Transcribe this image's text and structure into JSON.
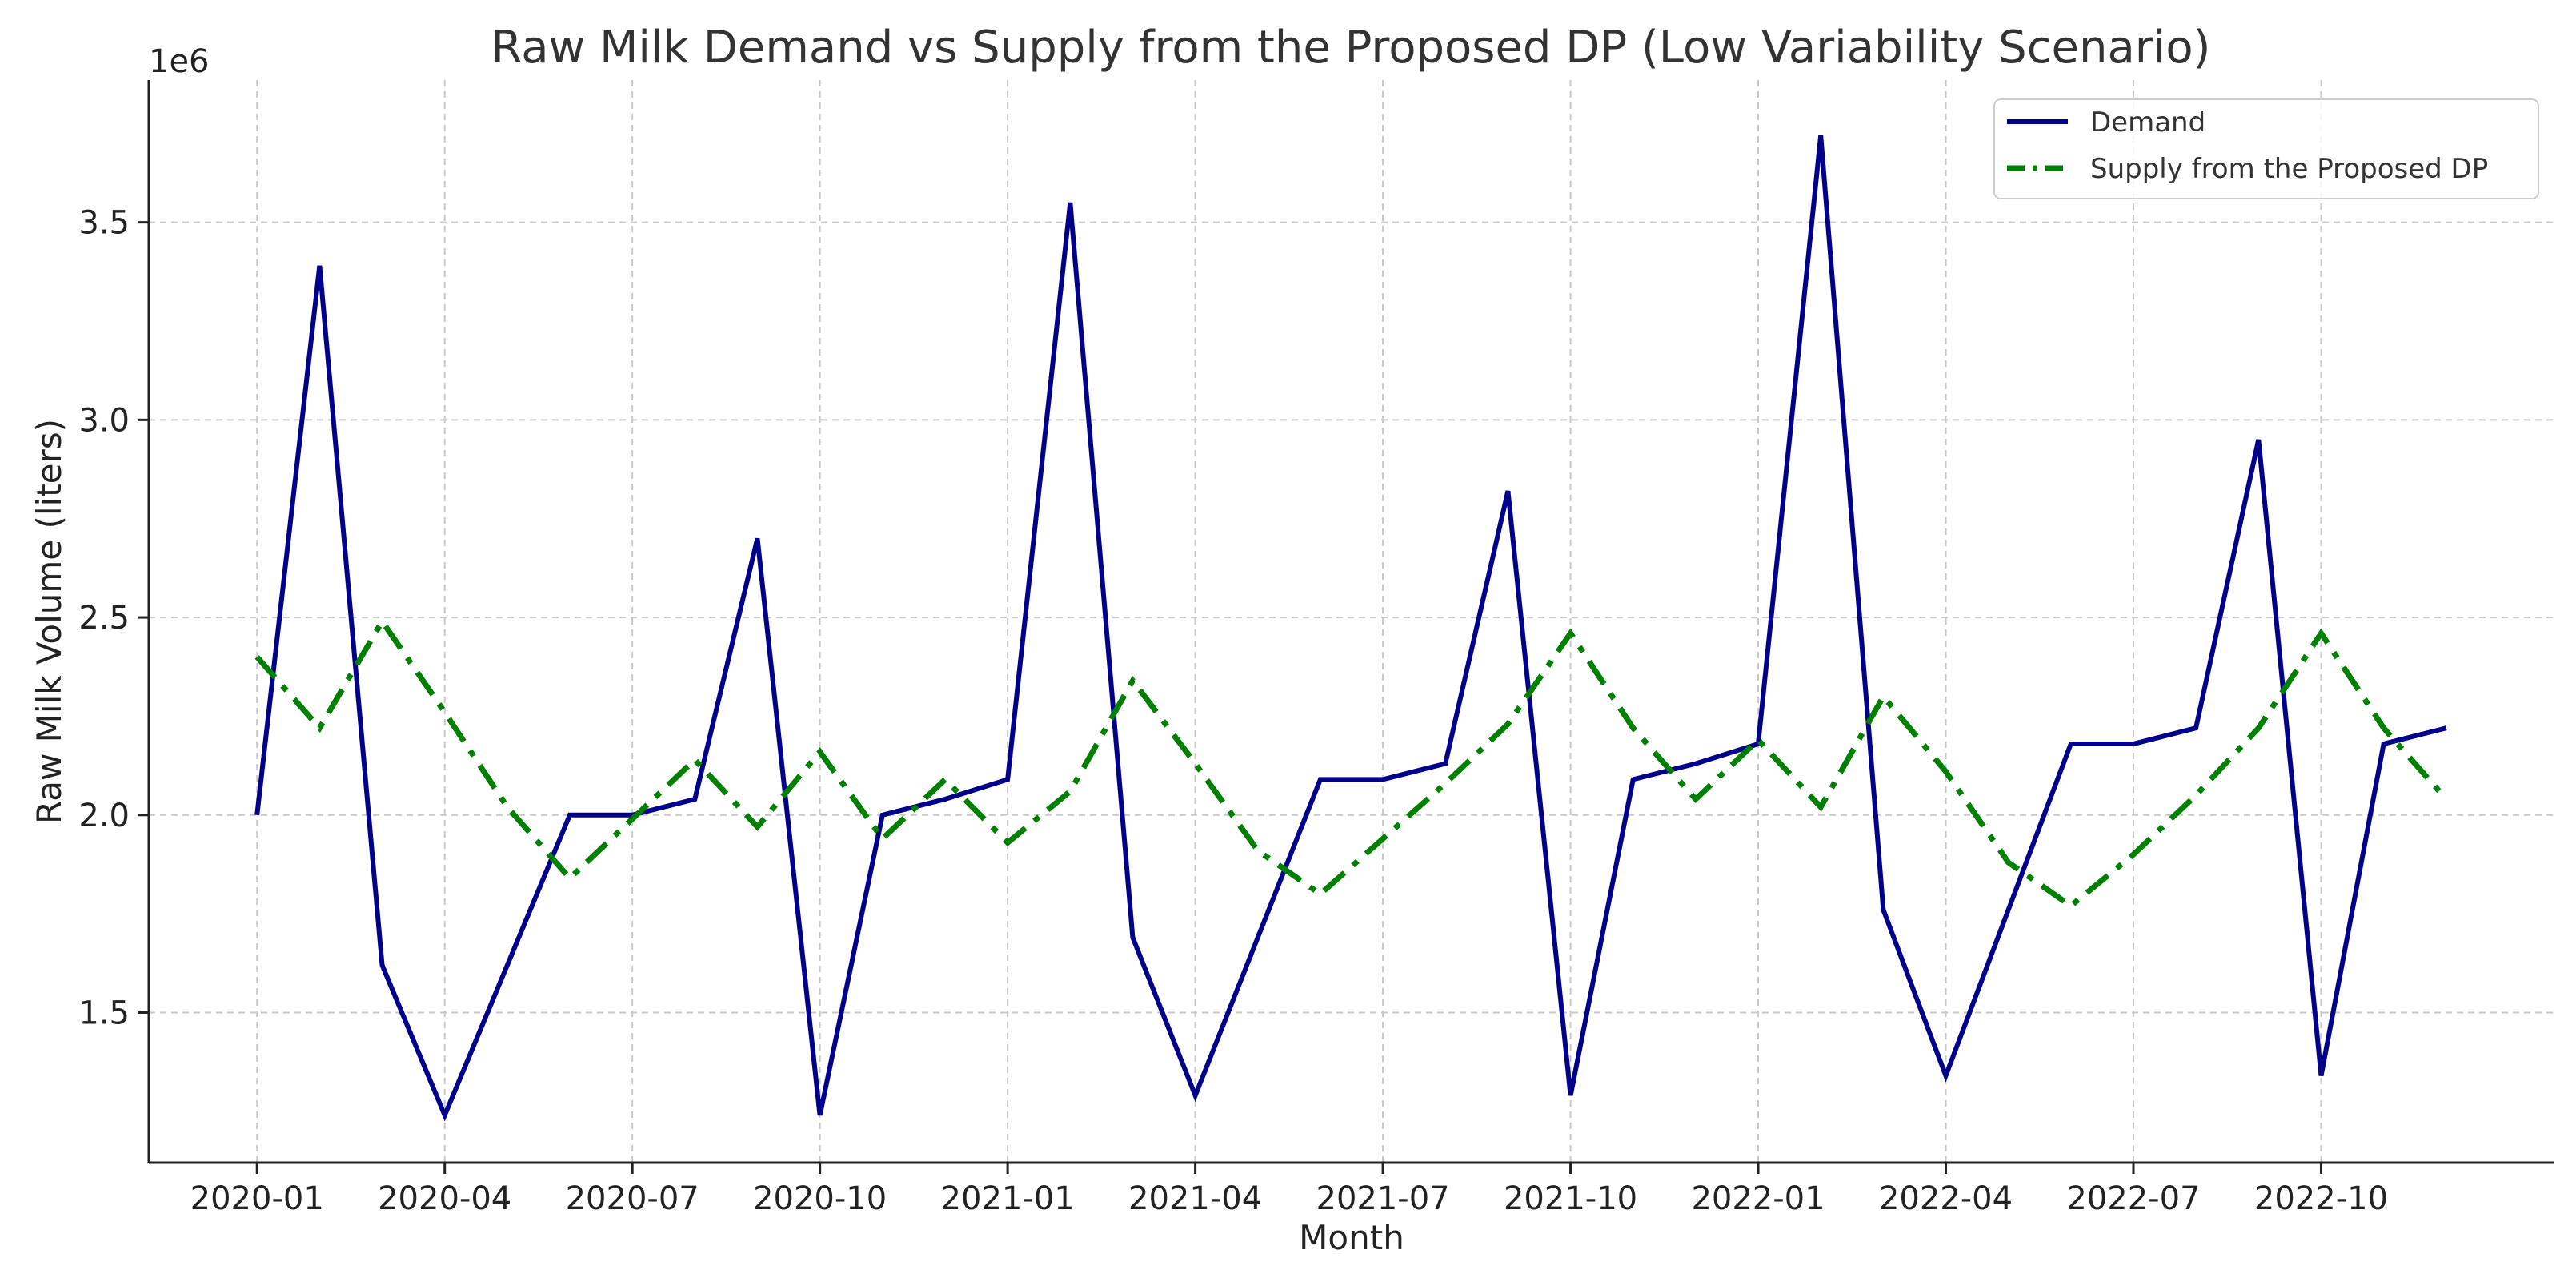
{
  "chart_data": {
    "type": "line",
    "title": "Raw Milk Demand vs Supply from the Proposed DP (Low Variability Scenario)",
    "xlabel": "Month",
    "ylabel": "Raw Milk Volume (liters)",
    "y_offset_label": "1e6",
    "ylim": [
      1.12,
      3.86
    ],
    "y_ticks": [
      1.5,
      2.0,
      2.5,
      3.0,
      3.5
    ],
    "y_tick_labels": [
      "1.5",
      "2.0",
      "2.5",
      "3.0",
      "3.5"
    ],
    "x_tick_indices": [
      0,
      3,
      6,
      9,
      12,
      15,
      18,
      21,
      24,
      27,
      30,
      33
    ],
    "x_tick_labels": [
      "2020-01",
      "2020-04",
      "2020-07",
      "2020-10",
      "2021-01",
      "2021-04",
      "2021-07",
      "2021-10",
      "2022-01",
      "2022-04",
      "2022-07",
      "2022-10"
    ],
    "xlim": [
      -1.73,
      36.73
    ],
    "grid": true,
    "legend_position": "top-right",
    "categories": [
      "2020-01",
      "2020-02",
      "2020-03",
      "2020-04",
      "2020-05",
      "2020-06",
      "2020-07",
      "2020-08",
      "2020-09",
      "2020-10",
      "2020-11",
      "2020-12",
      "2021-01",
      "2021-02",
      "2021-03",
      "2021-04",
      "2021-05",
      "2021-06",
      "2021-07",
      "2021-08",
      "2021-09",
      "2021-10",
      "2021-11",
      "2021-12",
      "2022-01",
      "2022-02",
      "2022-03",
      "2022-04",
      "2022-05",
      "2022-06",
      "2022-07",
      "2022-08",
      "2022-09",
      "2022-10",
      "2022-11",
      "2022-12"
    ],
    "series": [
      {
        "name": "Demand",
        "color": "#00008b",
        "style": "solid",
        "values": [
          2.0,
          3.39,
          1.62,
          1.24,
          1.62,
          2.0,
          2.0,
          2.04,
          2.7,
          1.24,
          2.0,
          2.04,
          2.09,
          3.55,
          1.69,
          1.29,
          1.69,
          2.09,
          2.09,
          2.13,
          2.82,
          1.29,
          2.09,
          2.13,
          2.18,
          3.72,
          1.76,
          1.34,
          1.76,
          2.18,
          2.18,
          2.22,
          2.95,
          1.34,
          2.18,
          2.22
        ]
      },
      {
        "name": "Supply from the Proposed DP",
        "color": "#008000",
        "style": "dashdot",
        "values": [
          2.4,
          2.22,
          2.49,
          2.26,
          2.02,
          1.84,
          1.99,
          2.14,
          1.97,
          2.16,
          1.94,
          2.09,
          1.93,
          2.06,
          2.34,
          2.13,
          1.91,
          1.8,
          1.94,
          2.08,
          2.23,
          2.46,
          2.22,
          2.04,
          2.19,
          2.02,
          2.3,
          2.11,
          1.88,
          1.77,
          1.9,
          2.05,
          2.22,
          2.46,
          2.22,
          2.04
        ]
      }
    ]
  }
}
